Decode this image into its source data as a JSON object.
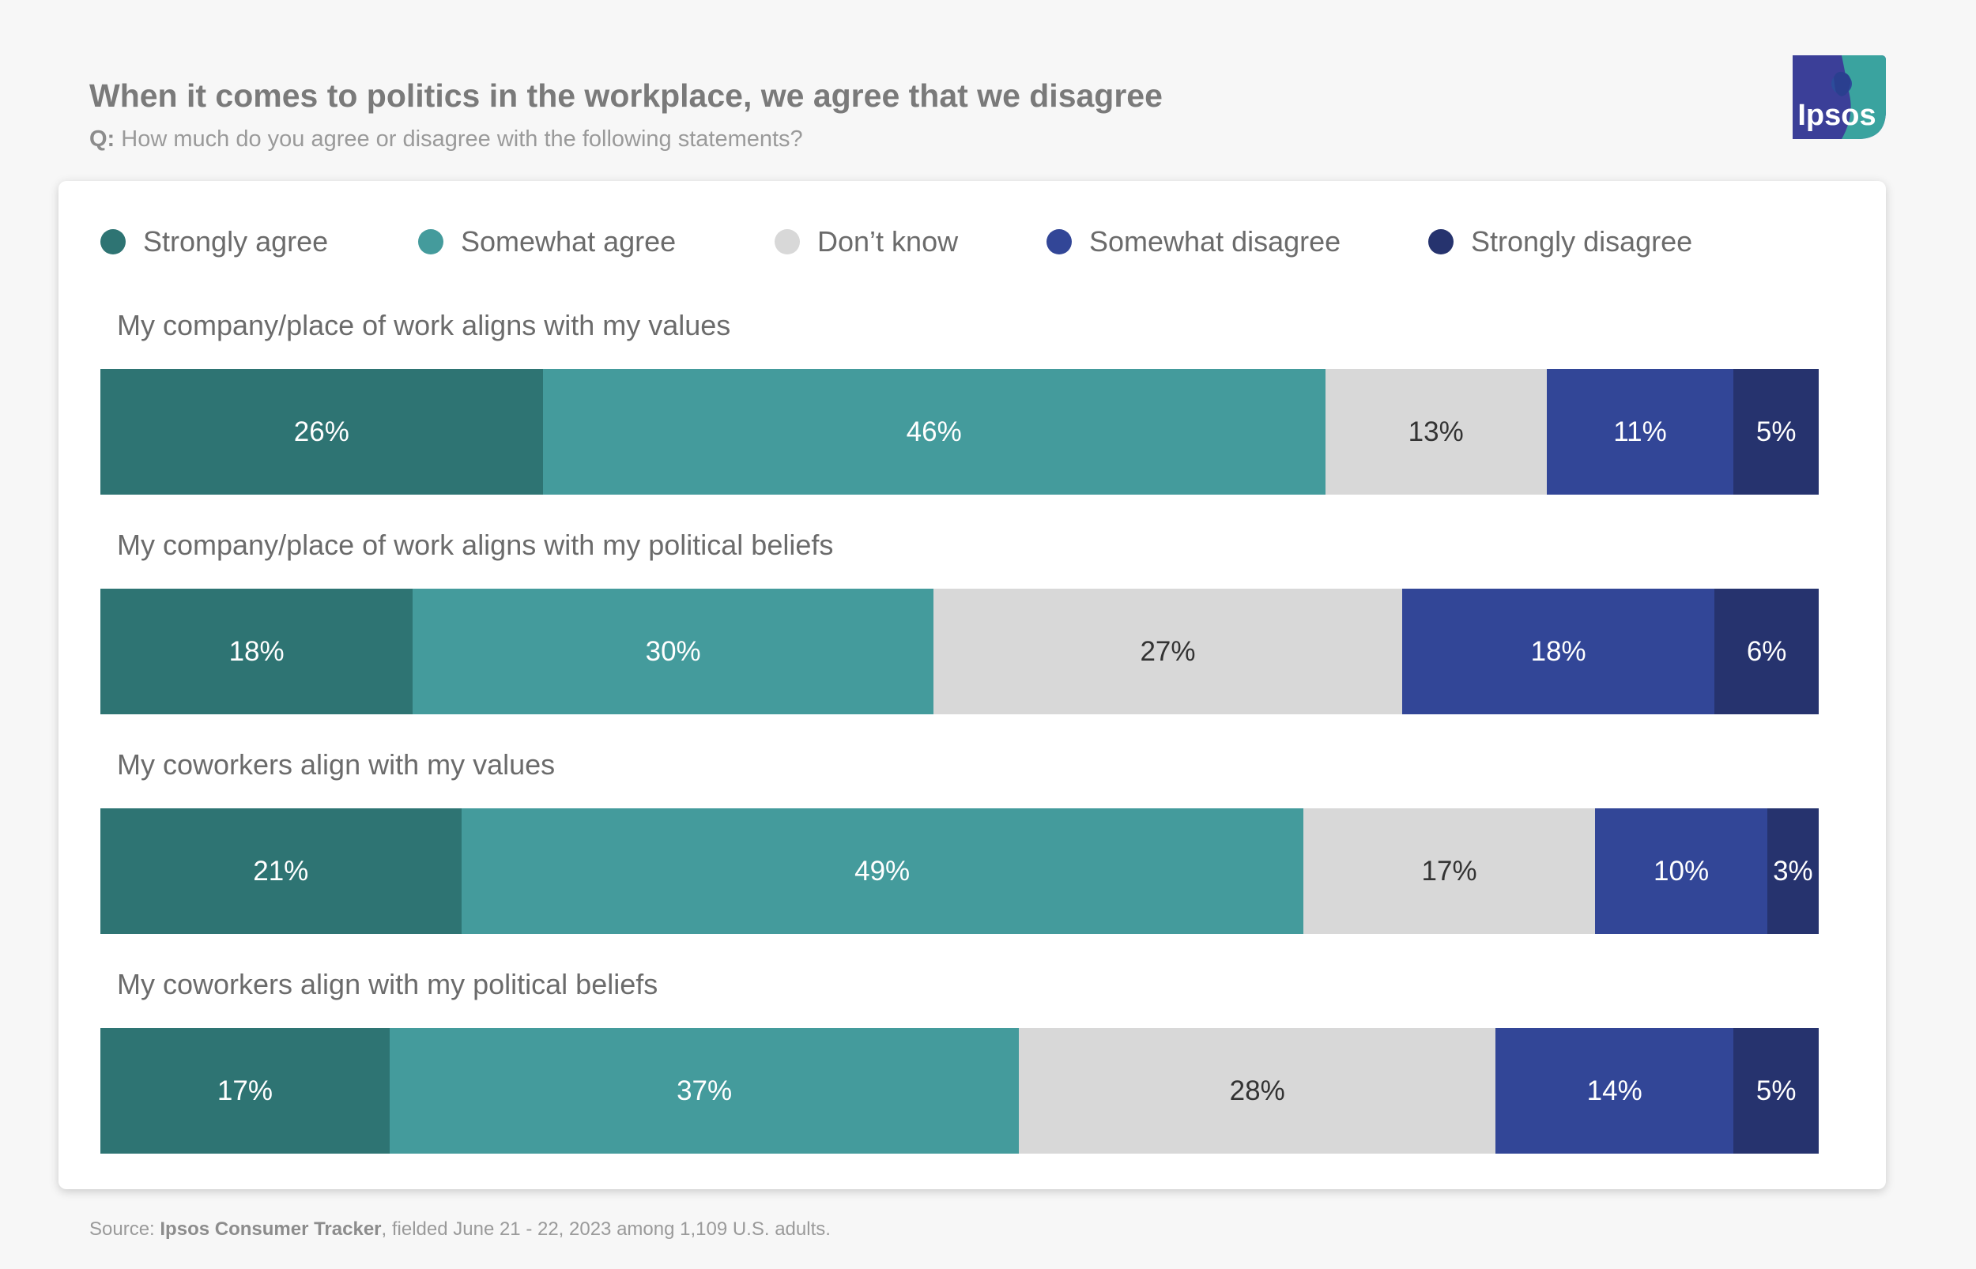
{
  "header": {
    "title": "When it comes to politics in the workplace, we agree that we disagree",
    "subtitle_prefix": "Q:",
    "subtitle_text": " How much do you agree or disagree with the following statements?",
    "logo_text": "Ipsos"
  },
  "footer": {
    "prefix": "Source: ",
    "source_name": "Ipsos Consumer Tracker",
    "suffix": ", fielded June 21 - 22, 2023 among 1,109 U.S. adults."
  },
  "colors": {
    "strongly_agree": "#2e7473",
    "somewhat_agree": "#449b9c",
    "dont_know": "#d8d8d8",
    "somewhat_disagree": "#324697",
    "strongly_disagree": "#26336e"
  },
  "chart_data": {
    "type": "bar",
    "orientation": "horizontal",
    "stacked": true,
    "title": "When it comes to politics in the workplace, we agree that we disagree",
    "subtitle": "Q: How much do you agree or disagree with the following statements?",
    "legend_position": "top",
    "categories": [
      "My company/place of work aligns with my values",
      "My company/place of work aligns with my political beliefs",
      "My coworkers align with my values",
      "My coworkers align with my political beliefs"
    ],
    "series": [
      {
        "name": "Strongly agree",
        "color": "#2e7473",
        "label_color": "#ffffff",
        "values": [
          26,
          18,
          21,
          17
        ],
        "labels": [
          "26%",
          "18%",
          "21%",
          "17%"
        ]
      },
      {
        "name": "Somewhat agree",
        "color": "#449b9c",
        "label_color": "#ffffff",
        "values": [
          46,
          30,
          49,
          37
        ],
        "labels": [
          "46%",
          "30%",
          "49%",
          "37%"
        ]
      },
      {
        "name": "Don’t know",
        "color": "#d8d8d8",
        "label_color": "#333333",
        "values": [
          13,
          27,
          17,
          28
        ],
        "labels": [
          "13%",
          "27%",
          "17%",
          "28%"
        ]
      },
      {
        "name": "Somewhat disagree",
        "color": "#324697",
        "label_color": "#ffffff",
        "values": [
          11,
          18,
          10,
          14
        ],
        "labels": [
          "11%",
          "18%",
          "10%",
          "14%"
        ]
      },
      {
        "name": "Strongly disagree",
        "color": "#26336e",
        "label_color": "#ffffff",
        "values": [
          5,
          6,
          3,
          5
        ],
        "labels": [
          "5%",
          "6%",
          "3%",
          "5%"
        ]
      }
    ]
  }
}
